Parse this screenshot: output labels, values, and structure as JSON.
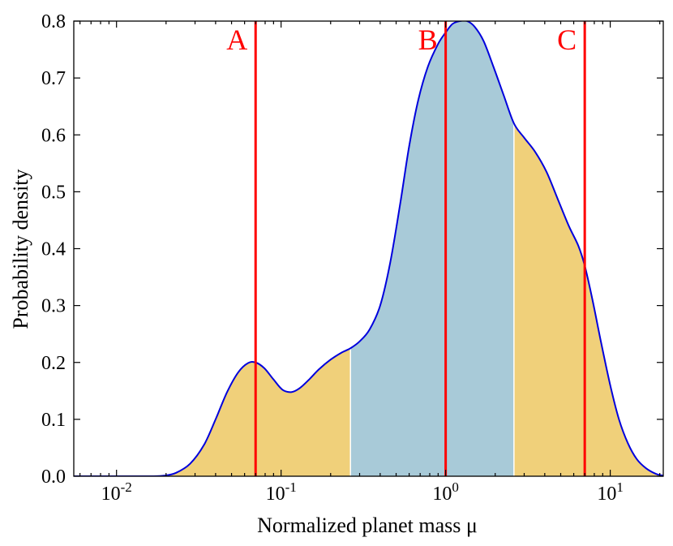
{
  "chart_data": {
    "type": "area",
    "title": "",
    "xlabel": "Normalized planet mass μ",
    "ylabel": "Probability density",
    "xscale": "log",
    "xlim": [
      0.0055,
      21
    ],
    "ylim": [
      0,
      0.8
    ],
    "grid": false,
    "x_ticks": [
      {
        "value": 0.01,
        "base": "10",
        "exp": "-2"
      },
      {
        "value": 0.1,
        "base": "10",
        "exp": "-1"
      },
      {
        "value": 1,
        "base": "10",
        "exp": "0"
      },
      {
        "value": 10,
        "base": "10",
        "exp": "1"
      }
    ],
    "y_ticks": [
      {
        "value": 0.0,
        "label": "0.0"
      },
      {
        "value": 0.1,
        "label": "0.1"
      },
      {
        "value": 0.2,
        "label": "0.2"
      },
      {
        "value": 0.3,
        "label": "0.3"
      },
      {
        "value": 0.4,
        "label": "0.4"
      },
      {
        "value": 0.5,
        "label": "0.5"
      },
      {
        "value": 0.6,
        "label": "0.6"
      },
      {
        "value": 0.7,
        "label": "0.7"
      },
      {
        "value": 0.8,
        "label": "0.8"
      }
    ],
    "series": [
      {
        "name": "Probability density",
        "color": "#0000dd",
        "x": [
          0.0055,
          0.0078,
          0.0112,
          0.016,
          0.0195,
          0.023,
          0.028,
          0.034,
          0.04,
          0.047,
          0.055,
          0.063,
          0.07,
          0.079,
          0.09,
          0.102,
          0.116,
          0.13,
          0.148,
          0.17,
          0.2,
          0.232,
          0.264,
          0.3,
          0.345,
          0.4,
          0.46,
          0.53,
          0.6,
          0.68,
          0.78,
          0.9,
          1.0,
          1.1,
          1.22,
          1.35,
          1.5,
          1.7,
          1.95,
          2.25,
          2.6,
          3.0,
          3.5,
          4.1,
          4.8,
          5.6,
          6.4,
          7.0,
          7.8,
          8.8,
          10.0,
          11.3,
          12.8,
          14.5,
          16.5,
          19.0,
          21.0
        ],
        "y": [
          0.0,
          0.0,
          0.0,
          0.0,
          0.001,
          0.006,
          0.022,
          0.055,
          0.1,
          0.148,
          0.183,
          0.199,
          0.2,
          0.19,
          0.17,
          0.152,
          0.148,
          0.155,
          0.17,
          0.188,
          0.205,
          0.217,
          0.225,
          0.237,
          0.258,
          0.3,
          0.375,
          0.48,
          0.58,
          0.66,
          0.72,
          0.76,
          0.78,
          0.795,
          0.8,
          0.8,
          0.79,
          0.765,
          0.72,
          0.67,
          0.62,
          0.595,
          0.57,
          0.535,
          0.487,
          0.44,
          0.405,
          0.37,
          0.31,
          0.235,
          0.16,
          0.1,
          0.058,
          0.03,
          0.014,
          0.004,
          0.001
        ]
      }
    ],
    "shaded_regions": [
      {
        "from": 0.0055,
        "to": 0.264,
        "color": "#f0d07a"
      },
      {
        "from": 0.264,
        "to": 2.6,
        "color": "#a8cad8"
      },
      {
        "from": 2.6,
        "to": 21.0,
        "color": "#f0d07a"
      }
    ],
    "markers": [
      {
        "label": "A",
        "x": 0.07,
        "color": "#ff0000"
      },
      {
        "label": "B",
        "x": 1.0,
        "color": "#ff0000"
      },
      {
        "label": "C",
        "x": 7.0,
        "color": "#ff0000"
      }
    ]
  }
}
